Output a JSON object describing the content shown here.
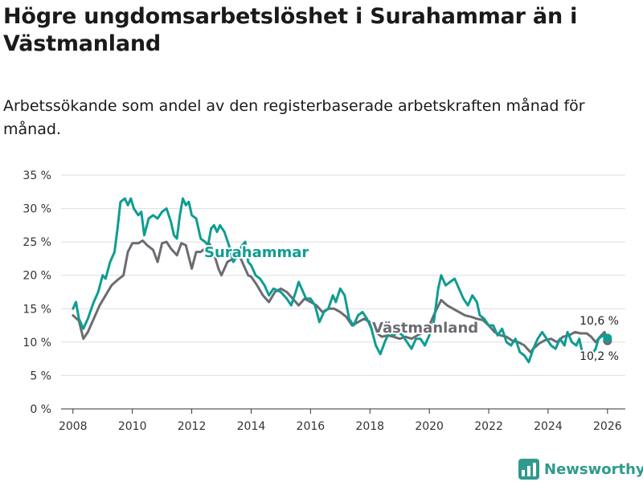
{
  "title": "Högre ungdomsarbetslöshet i Surahammar än i Västmanland",
  "subtitle": "Arbetssökande som andel av den registerbaserade arbetskraften månad för månad.",
  "brand": {
    "name": "Newsworthy"
  },
  "colors": {
    "surahammar": "#0e9d91",
    "vastmanland": "#6d6b72",
    "grid": "#dddddd",
    "axis": "#333333"
  },
  "chart_data": {
    "type": "line",
    "title": "Högre ungdomsarbetslöshet i Surahammar än i Västmanland",
    "xlabel": "",
    "ylabel": "",
    "xlim": [
      2007.6,
      2026.6
    ],
    "ylim": [
      0,
      35
    ],
    "x_ticks": [
      2008,
      2010,
      2012,
      2014,
      2016,
      2018,
      2020,
      2022,
      2024,
      2026
    ],
    "x_tick_labels": [
      "2008",
      "2010",
      "2012",
      "2014",
      "2016",
      "2018",
      "2020",
      "2022",
      "2024",
      "2026"
    ],
    "y_ticks": [
      0,
      5,
      10,
      15,
      20,
      25,
      30,
      35
    ],
    "y_tick_labels": [
      "0 %",
      "5 %",
      "10 %",
      "15 %",
      "20 %",
      "25 %",
      "30 %",
      "35 %"
    ],
    "grid": true,
    "series": [
      {
        "name": "Västmanland",
        "label": "Västmanland",
        "end_label": "10,2 %",
        "end_value": 10.2,
        "points": [
          [
            2008.0,
            14.0
          ],
          [
            2008.2,
            13.2
          ],
          [
            2008.35,
            10.5
          ],
          [
            2008.5,
            11.5
          ],
          [
            2008.7,
            13.5
          ],
          [
            2008.9,
            15.5
          ],
          [
            2009.1,
            17.0
          ],
          [
            2009.3,
            18.5
          ],
          [
            2009.5,
            19.3
          ],
          [
            2009.7,
            20.0
          ],
          [
            2009.85,
            23.5
          ],
          [
            2010.0,
            24.8
          ],
          [
            2010.2,
            24.8
          ],
          [
            2010.35,
            25.2
          ],
          [
            2010.5,
            24.5
          ],
          [
            2010.7,
            23.8
          ],
          [
            2010.85,
            22.0
          ],
          [
            2011.0,
            24.8
          ],
          [
            2011.15,
            25.0
          ],
          [
            2011.3,
            24.0
          ],
          [
            2011.5,
            23.0
          ],
          [
            2011.65,
            24.8
          ],
          [
            2011.8,
            24.5
          ],
          [
            2012.0,
            21.0
          ],
          [
            2012.15,
            23.5
          ],
          [
            2012.3,
            23.5
          ],
          [
            2012.45,
            24.0
          ],
          [
            2012.6,
            24.7
          ],
          [
            2012.7,
            23.8
          ],
          [
            2012.8,
            22.5
          ],
          [
            2012.9,
            21.0
          ],
          [
            2013.0,
            20.0
          ],
          [
            2013.2,
            22.0
          ],
          [
            2013.4,
            22.5
          ],
          [
            2013.6,
            23.0
          ],
          [
            2013.75,
            21.5
          ],
          [
            2013.9,
            20.0
          ],
          [
            2014.0,
            19.8
          ],
          [
            2014.2,
            18.5
          ],
          [
            2014.4,
            17.0
          ],
          [
            2014.6,
            16.0
          ],
          [
            2014.8,
            17.5
          ],
          [
            2015.0,
            18.0
          ],
          [
            2015.2,
            17.5
          ],
          [
            2015.4,
            16.5
          ],
          [
            2015.6,
            15.5
          ],
          [
            2015.8,
            16.5
          ],
          [
            2016.0,
            16.0
          ],
          [
            2016.2,
            15.5
          ],
          [
            2016.4,
            14.5
          ],
          [
            2016.6,
            15.0
          ],
          [
            2016.8,
            15.0
          ],
          [
            2017.0,
            14.5
          ],
          [
            2017.2,
            13.8
          ],
          [
            2017.4,
            12.5
          ],
          [
            2017.6,
            13.0
          ],
          [
            2017.8,
            13.5
          ],
          [
            2018.0,
            13.0
          ],
          [
            2018.2,
            11.5
          ],
          [
            2018.4,
            10.8
          ],
          [
            2018.6,
            11.0
          ],
          [
            2018.8,
            10.8
          ],
          [
            2019.0,
            10.5
          ],
          [
            2019.2,
            10.8
          ],
          [
            2019.4,
            10.5
          ],
          [
            2019.6,
            11.0
          ],
          [
            2019.8,
            11.5
          ],
          [
            2020.0,
            12.5
          ],
          [
            2020.2,
            14.5
          ],
          [
            2020.4,
            16.3
          ],
          [
            2020.6,
            15.5
          ],
          [
            2020.8,
            15.0
          ],
          [
            2021.0,
            14.5
          ],
          [
            2021.2,
            14.0
          ],
          [
            2021.4,
            13.8
          ],
          [
            2021.6,
            13.5
          ],
          [
            2021.8,
            13.3
          ],
          [
            2022.0,
            12.5
          ],
          [
            2022.2,
            11.5
          ],
          [
            2022.4,
            11.0
          ],
          [
            2022.6,
            10.8
          ],
          [
            2022.8,
            10.2
          ],
          [
            2023.0,
            10.0
          ],
          [
            2023.2,
            9.5
          ],
          [
            2023.4,
            8.5
          ],
          [
            2023.5,
            9.0
          ],
          [
            2023.7,
            9.8
          ],
          [
            2023.9,
            10.3
          ],
          [
            2024.1,
            10.5
          ],
          [
            2024.3,
            10.0
          ],
          [
            2024.5,
            10.8
          ],
          [
            2024.7,
            11.0
          ],
          [
            2024.9,
            11.5
          ],
          [
            2025.1,
            11.3
          ],
          [
            2025.3,
            11.3
          ],
          [
            2025.45,
            10.8
          ],
          [
            2025.6,
            10.0
          ],
          [
            2025.75,
            10.8
          ],
          [
            2025.9,
            11.5
          ],
          [
            2026.0,
            10.2
          ]
        ]
      },
      {
        "name": "Surahammar",
        "label": "Surahammar",
        "end_label": "10,6 %",
        "end_value": 10.6,
        "points": [
          [
            2008.0,
            15.0
          ],
          [
            2008.1,
            16.0
          ],
          [
            2008.2,
            13.5
          ],
          [
            2008.35,
            12.0
          ],
          [
            2008.5,
            13.5
          ],
          [
            2008.7,
            16.0
          ],
          [
            2008.85,
            17.5
          ],
          [
            2009.0,
            20.0
          ],
          [
            2009.1,
            19.5
          ],
          [
            2009.25,
            22.0
          ],
          [
            2009.4,
            23.5
          ],
          [
            2009.5,
            27.0
          ],
          [
            2009.6,
            31.0
          ],
          [
            2009.75,
            31.5
          ],
          [
            2009.85,
            30.5
          ],
          [
            2009.95,
            31.5
          ],
          [
            2010.05,
            30.0
          ],
          [
            2010.2,
            29.0
          ],
          [
            2010.3,
            29.5
          ],
          [
            2010.4,
            26.0
          ],
          [
            2010.55,
            28.5
          ],
          [
            2010.7,
            29.0
          ],
          [
            2010.85,
            28.5
          ],
          [
            2011.0,
            29.5
          ],
          [
            2011.15,
            30.0
          ],
          [
            2011.3,
            28.0
          ],
          [
            2011.4,
            26.0
          ],
          [
            2011.5,
            25.5
          ],
          [
            2011.6,
            29.0
          ],
          [
            2011.7,
            31.5
          ],
          [
            2011.8,
            30.5
          ],
          [
            2011.9,
            31.0
          ],
          [
            2012.0,
            29.0
          ],
          [
            2012.15,
            28.5
          ],
          [
            2012.3,
            25.5
          ],
          [
            2012.45,
            25.0
          ],
          [
            2012.55,
            24.5
          ],
          [
            2012.65,
            27.0
          ],
          [
            2012.75,
            27.5
          ],
          [
            2012.85,
            26.5
          ],
          [
            2012.95,
            27.5
          ],
          [
            2013.1,
            26.5
          ],
          [
            2013.25,
            24.5
          ],
          [
            2013.4,
            22.0
          ],
          [
            2013.55,
            23.0
          ],
          [
            2013.7,
            24.5
          ],
          [
            2013.8,
            25.0
          ],
          [
            2013.9,
            22.0
          ],
          [
            2014.0,
            21.5
          ],
          [
            2014.15,
            20.0
          ],
          [
            2014.3,
            19.5
          ],
          [
            2014.45,
            18.5
          ],
          [
            2014.6,
            17.0
          ],
          [
            2014.75,
            18.0
          ],
          [
            2015.0,
            17.5
          ],
          [
            2015.2,
            16.5
          ],
          [
            2015.35,
            15.5
          ],
          [
            2015.5,
            17.5
          ],
          [
            2015.6,
            19.0
          ],
          [
            2015.7,
            18.0
          ],
          [
            2015.85,
            16.5
          ],
          [
            2016.0,
            16.5
          ],
          [
            2016.15,
            15.5
          ],
          [
            2016.3,
            13.0
          ],
          [
            2016.45,
            14.5
          ],
          [
            2016.6,
            15.0
          ],
          [
            2016.75,
            17.0
          ],
          [
            2016.85,
            16.0
          ],
          [
            2017.0,
            18.0
          ],
          [
            2017.15,
            17.0
          ],
          [
            2017.3,
            13.5
          ],
          [
            2017.45,
            12.5
          ],
          [
            2017.6,
            14.0
          ],
          [
            2017.75,
            14.5
          ],
          [
            2017.9,
            13.5
          ],
          [
            2018.05,
            12.0
          ],
          [
            2018.2,
            9.5
          ],
          [
            2018.35,
            8.2
          ],
          [
            2018.5,
            10.0
          ],
          [
            2018.65,
            11.5
          ],
          [
            2018.8,
            11.0
          ],
          [
            2018.95,
            11.5
          ],
          [
            2019.1,
            11.0
          ],
          [
            2019.25,
            10.0
          ],
          [
            2019.4,
            9.0
          ],
          [
            2019.55,
            10.5
          ],
          [
            2019.7,
            10.5
          ],
          [
            2019.85,
            9.5
          ],
          [
            2020.0,
            11.0
          ],
          [
            2020.15,
            13.0
          ],
          [
            2020.3,
            18.0
          ],
          [
            2020.4,
            20.0
          ],
          [
            2020.55,
            18.5
          ],
          [
            2020.7,
            19.0
          ],
          [
            2020.85,
            19.5
          ],
          [
            2021.0,
            18.0
          ],
          [
            2021.15,
            16.5
          ],
          [
            2021.3,
            15.5
          ],
          [
            2021.45,
            17.0
          ],
          [
            2021.6,
            16.0
          ],
          [
            2021.7,
            14.0
          ],
          [
            2021.85,
            13.5
          ],
          [
            2022.0,
            12.5
          ],
          [
            2022.15,
            12.5
          ],
          [
            2022.3,
            11.0
          ],
          [
            2022.45,
            12.0
          ],
          [
            2022.6,
            10.0
          ],
          [
            2022.75,
            9.5
          ],
          [
            2022.9,
            10.5
          ],
          [
            2023.05,
            8.5
          ],
          [
            2023.2,
            8.0
          ],
          [
            2023.35,
            7.0
          ],
          [
            2023.5,
            9.0
          ],
          [
            2023.65,
            10.5
          ],
          [
            2023.8,
            11.5
          ],
          [
            2023.95,
            10.5
          ],
          [
            2024.1,
            9.5
          ],
          [
            2024.25,
            9.0
          ],
          [
            2024.4,
            10.5
          ],
          [
            2024.55,
            9.5
          ],
          [
            2024.65,
            11.5
          ],
          [
            2024.8,
            10.0
          ],
          [
            2024.95,
            9.5
          ],
          [
            2025.05,
            10.5
          ],
          [
            2025.15,
            8.5
          ],
          [
            2025.3,
            7.5
          ],
          [
            2025.45,
            8.0
          ],
          [
            2025.6,
            9.0
          ],
          [
            2025.7,
            10.5
          ],
          [
            2025.85,
            11.0
          ],
          [
            2025.95,
            10.8
          ],
          [
            2026.0,
            10.6
          ]
        ]
      }
    ]
  }
}
